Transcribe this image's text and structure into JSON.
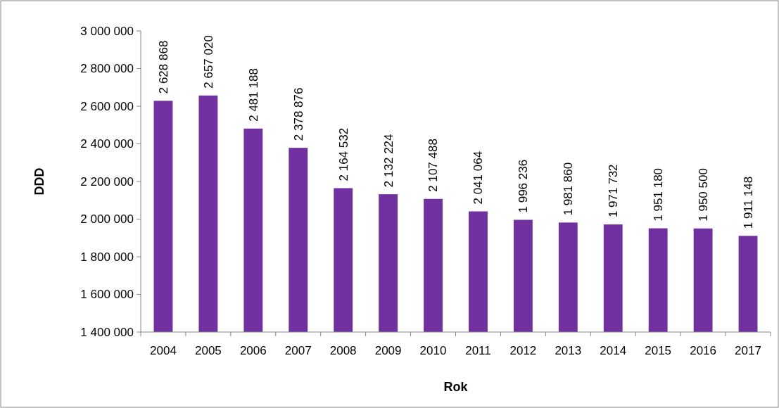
{
  "chart_data": {
    "type": "bar",
    "xlabel": "Rok",
    "ylabel": "DDD",
    "categories": [
      "2004",
      "2005",
      "2006",
      "2007",
      "2008",
      "2009",
      "2010",
      "2011",
      "2012",
      "2013",
      "2014",
      "2015",
      "2016",
      "2017"
    ],
    "values": [
      2628868,
      2657020,
      2481188,
      2378876,
      2164532,
      2132224,
      2107488,
      2041064,
      1996236,
      1981860,
      1971732,
      1951180,
      1950500,
      1911148
    ],
    "value_labels": [
      "2 628 868",
      "2 657 020",
      "2 481 188",
      "2 378 876",
      "2 164 532",
      "2 132 224",
      "2 107 488",
      "2 041 064",
      "1 996 236",
      "1 981 860",
      "1 971 732",
      "1 951 180",
      "1 950 500",
      "1 911 148"
    ],
    "color": "#7030a0",
    "ylim": [
      1400000,
      3000000
    ],
    "yticks": [
      {
        "value": 1400000,
        "label": "1 400 000"
      },
      {
        "value": 1600000,
        "label": "1 600 000"
      },
      {
        "value": 1800000,
        "label": "1 800 000"
      },
      {
        "value": 2000000,
        "label": "2 000 000"
      },
      {
        "value": 2200000,
        "label": "2 200 000"
      },
      {
        "value": 2400000,
        "label": "2 400 000"
      },
      {
        "value": 2600000,
        "label": "2 600 000"
      },
      {
        "value": 2800000,
        "label": "2 800 000"
      },
      {
        "value": 3000000,
        "label": "3 000 000"
      }
    ],
    "grid": false
  }
}
